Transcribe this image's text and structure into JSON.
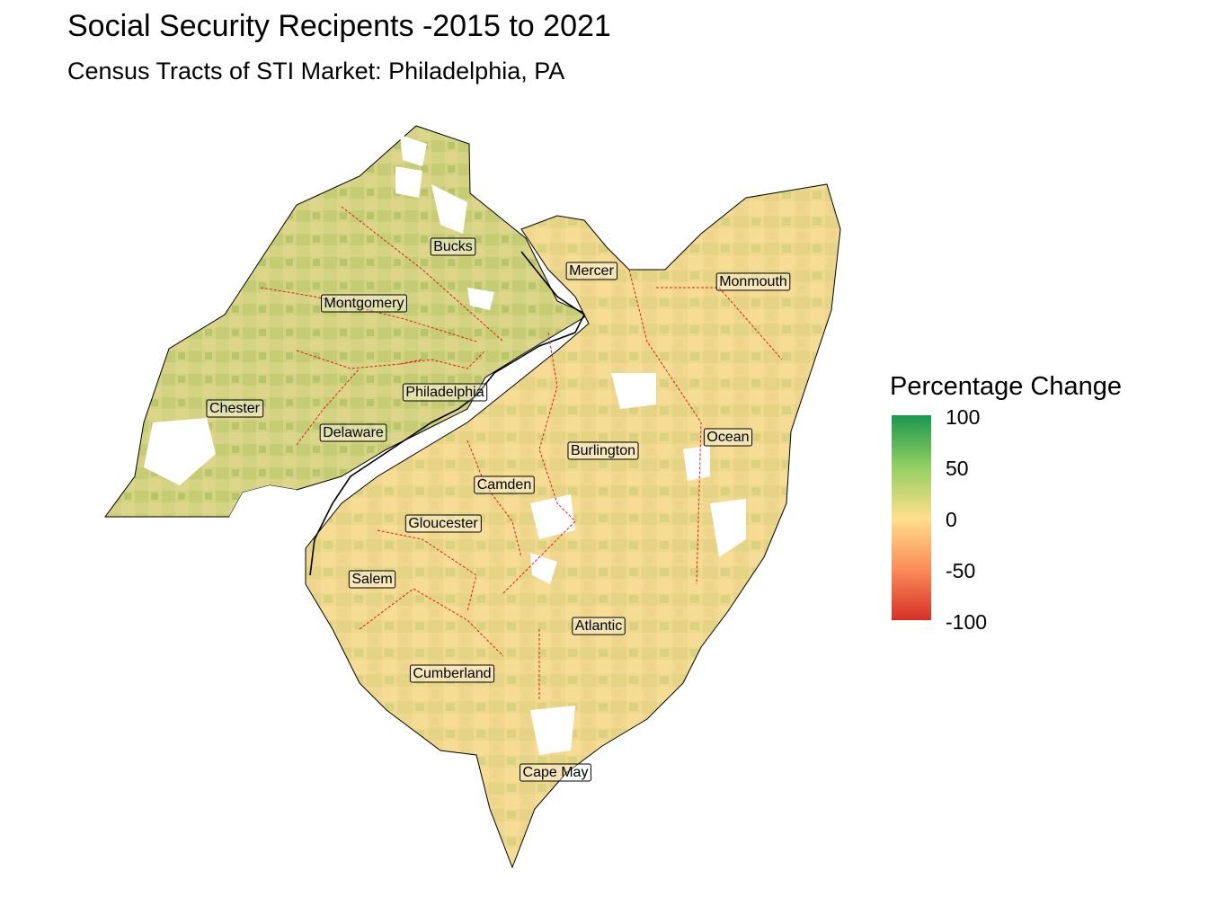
{
  "title": "Social Security Recipents -2015 to 2021",
  "subtitle": "Census Tracts of STI Market: Philadelphia, PA",
  "legend": {
    "title": "Percentage Change",
    "ticks": [
      "100",
      "50",
      "0",
      "-50",
      "-100"
    ],
    "colors": [
      "#1a9850",
      "#91cf60",
      "#fee08b",
      "#fc8d59",
      "#d73027"
    ]
  },
  "colors": {
    "boundary": "#e31a1c",
    "outline": "#000000",
    "fill_base": "#f2d98c",
    "fill_green": "#c9cf7a",
    "missing": "#ffffff"
  },
  "counties": [
    {
      "name": "Bucks"
    },
    {
      "name": "Mercer"
    },
    {
      "name": "Monmouth"
    },
    {
      "name": "Montgomery"
    },
    {
      "name": "Philadelphia"
    },
    {
      "name": "Chester"
    },
    {
      "name": "Delaware"
    },
    {
      "name": "Burlington"
    },
    {
      "name": "Ocean"
    },
    {
      "name": "Camden"
    },
    {
      "name": "Gloucester"
    },
    {
      "name": "Salem"
    },
    {
      "name": "Atlantic"
    },
    {
      "name": "Cumberland"
    },
    {
      "name": "Cape May"
    }
  ]
}
